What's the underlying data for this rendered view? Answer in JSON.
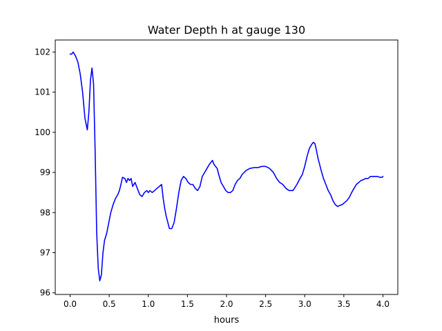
{
  "chart_data": {
    "type": "line",
    "title": "Water Depth h at gauge 130",
    "xlabel": "hours",
    "ylabel": "",
    "xlim": [
      -0.19,
      4.19
    ],
    "ylim": [
      95.96,
      102.3
    ],
    "xticks": [
      0.0,
      0.5,
      1.0,
      1.5,
      2.0,
      2.5,
      3.0,
      3.5,
      4.0
    ],
    "xtick_labels": [
      "0.0",
      "0.5",
      "1.0",
      "1.5",
      "2.0",
      "2.5",
      "3.0",
      "3.5",
      "4.0"
    ],
    "yticks": [
      96,
      97,
      98,
      99,
      100,
      101,
      102
    ],
    "ytick_labels": [
      "96",
      "97",
      "98",
      "99",
      "100",
      "101",
      "102"
    ],
    "grid": false,
    "legend": "none",
    "series": [
      {
        "color": "#0000ff",
        "x": [
          0.0,
          0.02,
          0.04,
          0.07,
          0.1,
          0.13,
          0.16,
          0.19,
          0.22,
          0.24,
          0.26,
          0.28,
          0.3,
          0.32,
          0.34,
          0.36,
          0.38,
          0.4,
          0.42,
          0.44,
          0.47,
          0.5,
          0.52,
          0.55,
          0.58,
          0.61,
          0.63,
          0.65,
          0.67,
          0.7,
          0.72,
          0.74,
          0.76,
          0.78,
          0.8,
          0.83,
          0.86,
          0.89,
          0.92,
          0.95,
          0.98,
          1.0,
          1.02,
          1.05,
          1.08,
          1.11,
          1.14,
          1.17,
          1.19,
          1.21,
          1.23,
          1.25,
          1.27,
          1.3,
          1.33,
          1.36,
          1.39,
          1.42,
          1.45,
          1.48,
          1.51,
          1.54,
          1.57,
          1.6,
          1.63,
          1.66,
          1.69,
          1.72,
          1.75,
          1.78,
          1.8,
          1.82,
          1.84,
          1.86,
          1.88,
          1.9,
          1.93,
          1.96,
          1.99,
          2.02,
          2.05,
          2.08,
          2.11,
          2.14,
          2.17,
          2.2,
          2.25,
          2.3,
          2.35,
          2.4,
          2.45,
          2.5,
          2.55,
          2.6,
          2.64,
          2.68,
          2.72,
          2.76,
          2.8,
          2.85,
          2.9,
          2.94,
          2.97,
          3.0,
          3.03,
          3.06,
          3.09,
          3.11,
          3.13,
          3.15,
          3.17,
          3.19,
          3.21,
          3.24,
          3.27,
          3.3,
          3.33,
          3.36,
          3.39,
          3.42,
          3.45,
          3.48,
          3.51,
          3.54,
          3.57,
          3.6,
          3.63,
          3.66,
          3.69,
          3.72,
          3.75,
          3.78,
          3.81,
          3.84,
          3.87,
          3.9,
          3.93,
          3.96,
          3.99,
          4.0
        ],
        "y": [
          101.95,
          101.95,
          102.0,
          101.9,
          101.75,
          101.45,
          101.0,
          100.35,
          100.06,
          100.5,
          101.3,
          101.6,
          101.2,
          99.5,
          97.5,
          96.6,
          96.3,
          96.45,
          97.0,
          97.3,
          97.5,
          97.8,
          98.0,
          98.2,
          98.35,
          98.45,
          98.55,
          98.7,
          98.88,
          98.85,
          98.75,
          98.85,
          98.8,
          98.85,
          98.65,
          98.75,
          98.6,
          98.45,
          98.4,
          98.5,
          98.55,
          98.5,
          98.55,
          98.5,
          98.55,
          98.6,
          98.65,
          98.7,
          98.35,
          98.1,
          97.9,
          97.75,
          97.6,
          97.6,
          97.75,
          98.1,
          98.5,
          98.8,
          98.9,
          98.85,
          98.75,
          98.7,
          98.7,
          98.6,
          98.55,
          98.65,
          98.9,
          99.0,
          99.1,
          99.2,
          99.25,
          99.3,
          99.2,
          99.15,
          99.1,
          98.95,
          98.75,
          98.65,
          98.55,
          98.5,
          98.5,
          98.55,
          98.7,
          98.8,
          98.85,
          98.95,
          99.05,
          99.1,
          99.12,
          99.12,
          99.15,
          99.15,
          99.1,
          99.0,
          98.85,
          98.75,
          98.7,
          98.6,
          98.55,
          98.55,
          98.7,
          98.85,
          98.95,
          99.15,
          99.4,
          99.6,
          99.7,
          99.75,
          99.72,
          99.55,
          99.35,
          99.2,
          99.05,
          98.85,
          98.7,
          98.55,
          98.45,
          98.3,
          98.2,
          98.15,
          98.18,
          98.2,
          98.25,
          98.3,
          98.38,
          98.5,
          98.6,
          98.7,
          98.75,
          98.8,
          98.82,
          98.85,
          98.85,
          98.9,
          98.9,
          98.9,
          98.9,
          98.88,
          98.88,
          98.9
        ]
      }
    ]
  }
}
